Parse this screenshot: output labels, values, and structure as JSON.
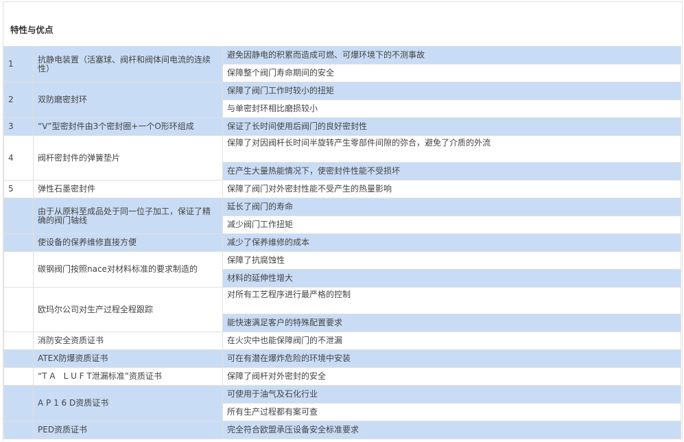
{
  "title": "特性与优点",
  "colors": {
    "highlight": "#c9dcf5",
    "plain": "#ffffff"
  },
  "rows": [
    {
      "num": "1",
      "feature": "抗静电装置（活塞球、阀杆和阀体间电流的连续性）",
      "feature_highlight": true,
      "benefits": [
        {
          "text": "避免因静电的积累而造成可燃、可爆环境下的不测事故",
          "highlight": true
        },
        {
          "text": "保障整个阀门寿命期间的安全",
          "highlight": false
        }
      ]
    },
    {
      "num": "2",
      "feature": "双防磨密封环",
      "feature_highlight": true,
      "benefits": [
        {
          "text": "保障了阀门工作时较小的扭矩",
          "highlight": true
        },
        {
          "text": "与单密封环相比磨损较小",
          "highlight": false
        }
      ]
    },
    {
      "num": "3",
      "feature": "“V”型密封件由3个密封圈+一个O形环组成",
      "feature_highlight": true,
      "benefits": [
        {
          "text": "保证了长时间使用后阀门的良好密封性",
          "highlight": true
        }
      ]
    },
    {
      "num": "4",
      "feature": "阀杆密封件的弹簧垫片",
      "feature_highlight": false,
      "benefits": [
        {
          "text": "保障了对因阀杆长时间半旋转产生零部件间隙的弥合，避免了介质的外流",
          "highlight": false,
          "tall": true
        },
        {
          "text": "在产生大量热能情况下，使密封件性能不受损坏",
          "highlight": true
        }
      ]
    },
    {
      "num": "5",
      "feature": "弹性石墨密封件",
      "feature_highlight": false,
      "benefits": [
        {
          "text": "保障了阀门对外密封性能不受产生的热量影响",
          "highlight": false
        }
      ]
    },
    {
      "num": "",
      "feature": "由于从原料至成品处于同一位子加工，保证了精确的阀门轴线",
      "feature_highlight": true,
      "benefits": [
        {
          "text": "延长了阀门的寿命",
          "highlight": true
        },
        {
          "text": "减少阀门工作扭矩",
          "highlight": false
        }
      ]
    },
    {
      "num": "",
      "feature": "使设备的保养维修直接方便",
      "feature_highlight": true,
      "benefits": [
        {
          "text": "减少了保养维修的成本",
          "highlight": true
        }
      ]
    },
    {
      "num": "",
      "feature": "碳钢阀门按照nace对材料标准的要求制造的",
      "feature_highlight": false,
      "benefits": [
        {
          "text": "保障了抗腐蚀性",
          "highlight": false
        },
        {
          "text": "材料的延伸性增大",
          "highlight": true
        }
      ]
    },
    {
      "num": "",
      "feature": "欧玛尔公司对生产过程全程跟踪",
      "feature_highlight": false,
      "benefits": [
        {
          "text": "对所有工艺程序进行最严格的控制",
          "highlight": false,
          "tall": true
        },
        {
          "text": "能快速满足客户的特殊配置要求",
          "highlight": true
        }
      ]
    },
    {
      "num": "",
      "feature": "消防安全资质证书",
      "feature_highlight": false,
      "benefits": [
        {
          "text": "在火灾中也能保障阀门的不泄漏",
          "highlight": false
        }
      ]
    },
    {
      "num": "",
      "feature": "ATEX防爆资质证书",
      "feature_highlight": true,
      "benefits": [
        {
          "text": "可在有潜在爆炸危险的环境中安装",
          "highlight": true
        }
      ]
    },
    {
      "num": "",
      "feature": "“T A　L U F T泄漏标准”资质证书",
      "feature_highlight": false,
      "benefits": [
        {
          "text": "保障了阀杆对外密封的安全",
          "highlight": false
        }
      ]
    },
    {
      "num": "",
      "feature": "A P 1 6 D资质证书",
      "feature_highlight": true,
      "benefits": [
        {
          "text": "可使用于油气及石化行业",
          "highlight": true
        },
        {
          "text": "所有生产过程都有案可查",
          "highlight": false
        }
      ]
    },
    {
      "num": "",
      "feature": "PED资质证书",
      "feature_highlight": true,
      "benefits": [
        {
          "text": "完全符合欧盟承压设备安全标准要求",
          "highlight": true
        }
      ]
    }
  ]
}
